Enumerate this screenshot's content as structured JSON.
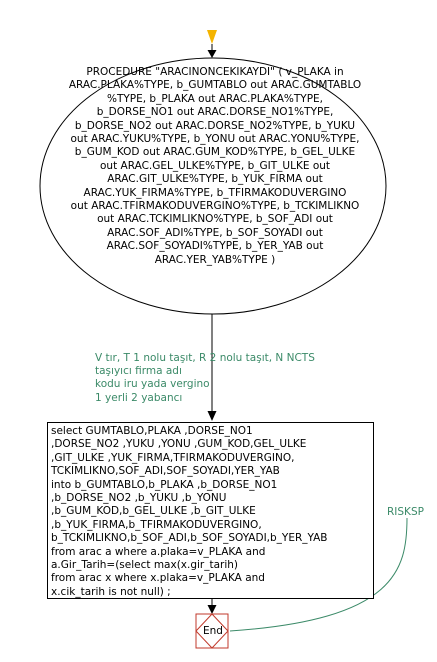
{
  "diagram": {
    "procedure_lines": [
      "PROCEDURE \"ARACINONCEKIKAYDI\" ( v_PLAKA in",
      "ARAC.PLAKA%TYPE, b_GUMTABLO out ARAC.GUMTABLO",
      "%TYPE,  b_PLAKA out ARAC.PLAKA%TYPE,",
      "b_DORSE_NO1 out ARAC.DORSE_NO1%TYPE,",
      "b_DORSE_NO2 out ARAC.DORSE_NO2%TYPE, b_YUKU",
      "out ARAC.YUKU%TYPE, b_YONU out ARAC.YONU%TYPE,",
      "b_GUM_KOD out ARAC.GUM_KOD%TYPE, b_GEL_ULKE",
      "out ARAC.GEL_ULKE%TYPE, b_GIT_ULKE out",
      "ARAC.GIT_ULKE%TYPE, b_YUK_FIRMA out",
      "ARAC.YUK_FIRMA%TYPE,  b_TFIRMAKODUVERGINO",
      "out ARAC.TFIRMAKODUVERGINO%TYPE,  b_TCKIMLIKNO",
      "out ARAC.TCKIMLIKNO%TYPE, b_SOF_ADI out",
      "ARAC.SOF_ADI%TYPE,  b_SOF_SOYADI out",
      "ARAC.SOF_SOYADI%TYPE, b_YER_YAB  out",
      "ARAC.YER_YAB%TYPE  )"
    ],
    "notes": [
      "V tır, T  1 nolu taşıt, R 2 nolu taşıt, N NCTS",
      "taşıyıcı firma adı",
      "kodu iru yada vergino",
      "1 yerli 2 yabancı"
    ],
    "sql_lines": [
      "select GUMTABLO,PLAKA ,DORSE_NO1",
      ",DORSE_NO2 ,YUKU  ,YONU ,GUM_KOD,GEL_ULKE",
      ",GIT_ULKE ,YUK_FIRMA,TFIRMAKODUVERGINO,",
      "TCKIMLIKNO,SOF_ADI,SOF_SOYADI,YER_YAB",
      "into  b_GUMTABLO,b_PLAKA ,b_DORSE_NO1",
      ",b_DORSE_NO2 ,b_YUKU  ,b_YONU",
      ",b_GUM_KOD,b_GEL_ULKE ,b_GIT_ULKE",
      ",b_YUK_FIRMA,b_TFIRMAKODUVERGINO,",
      "b_TCKIMLIKNO,b_SOF_ADI,b_SOF_SOYADI,b_YER_YAB",
      "from arac a where a.plaka=v_PLAKA and",
      "a.Gir_Tarih=(select max(x.gir_tarih)",
      "from arac  x where x.plaka=v_PLAKA and",
      "x.cik_tarih is not  null) ;"
    ],
    "exception_label": "RISKSP",
    "end_label": "End",
    "colors": {
      "start_triangle": "#f4b400",
      "note_text": "#3b8a68",
      "end_border": "#c0392b",
      "lines": "#000000"
    }
  }
}
